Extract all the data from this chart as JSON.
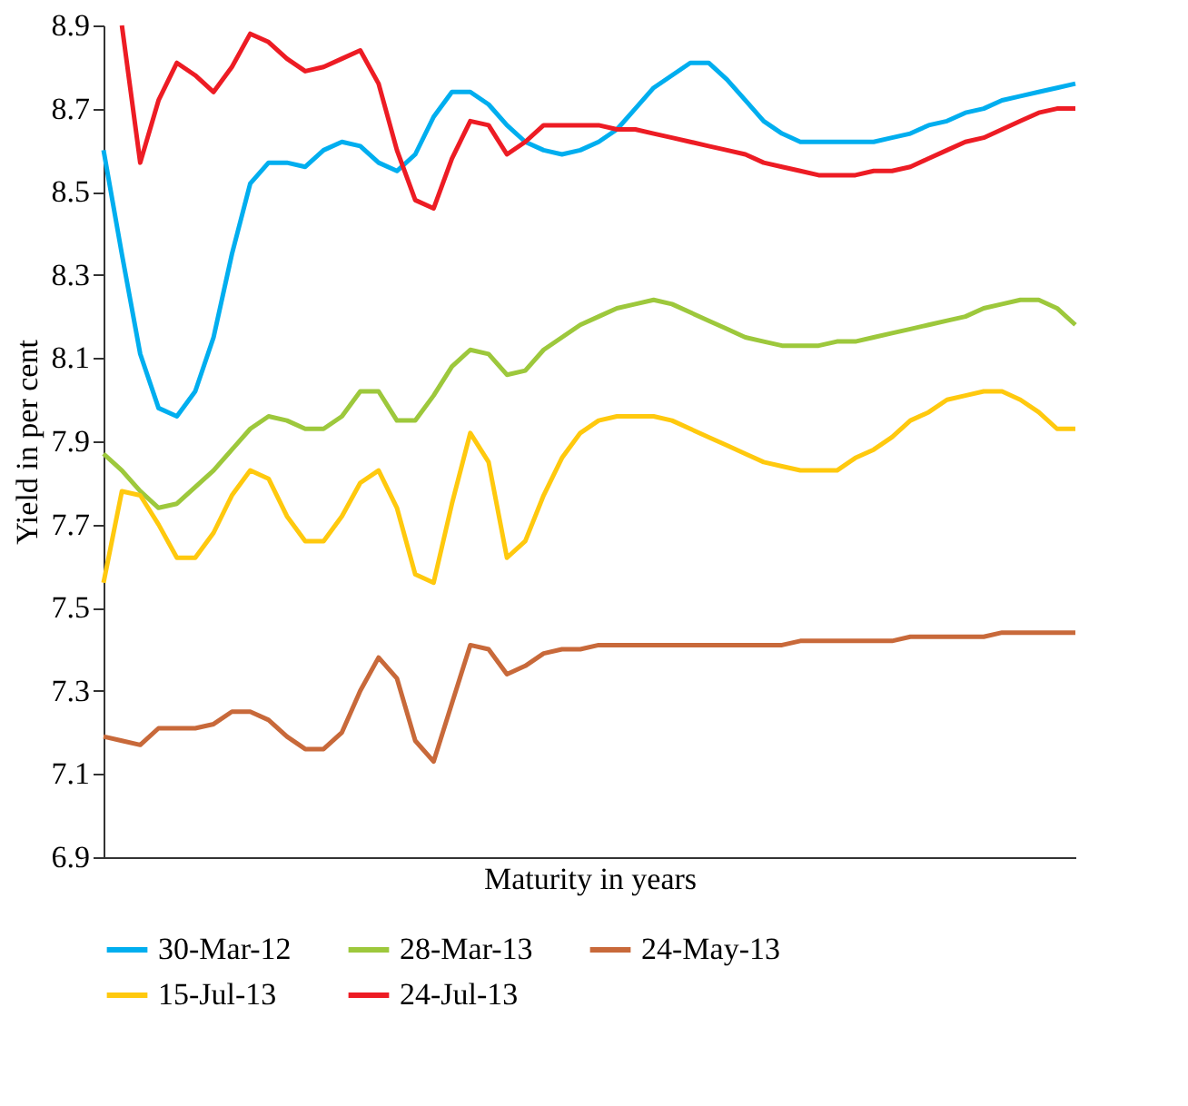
{
  "chart_data": {
    "type": "line",
    "xlabel": "Maturity in years",
    "ylabel": "Yield in per cent",
    "categories": [
      null,
      null,
      null,
      null,
      null,
      null,
      null,
      null,
      null,
      null,
      null,
      null,
      null,
      null,
      null,
      null,
      null,
      null,
      null,
      null,
      null,
      null,
      null,
      null,
      null,
      null,
      null,
      null,
      null,
      null,
      null,
      null,
      null,
      null,
      null,
      null,
      null,
      null,
      null,
      null,
      null,
      null,
      null,
      null,
      null,
      null,
      null,
      null,
      null,
      null,
      null,
      null,
      null,
      null
    ],
    "ylim": [
      6.9,
      8.9
    ],
    "yticks": [
      6.9,
      7.1,
      7.3,
      7.5,
      7.7,
      7.9,
      8.1,
      8.3,
      8.5,
      8.7,
      8.9
    ],
    "grid": false,
    "legend": "bottom",
    "tick_labels": "y",
    "marker": "none",
    "line_style": "solid",
    "series": [
      {
        "name": "30-Mar-12",
        "color": "#00aeef",
        "values": [
          8.6,
          8.35,
          8.11,
          7.98,
          7.96,
          8.02,
          8.15,
          8.35,
          8.52,
          8.57,
          8.57,
          8.56,
          8.6,
          8.62,
          8.61,
          8.57,
          8.55,
          8.59,
          8.68,
          8.74,
          8.74,
          8.71,
          8.66,
          8.62,
          8.6,
          8.59,
          8.6,
          8.62,
          8.65,
          8.7,
          8.75,
          8.78,
          8.81,
          8.81,
          8.77,
          8.72,
          8.67,
          8.64,
          8.62,
          8.62,
          8.62,
          8.62,
          8.62,
          8.63,
          8.64,
          8.66,
          8.67,
          8.69,
          8.7,
          8.72,
          8.73,
          8.74,
          8.75,
          8.76
        ]
      },
      {
        "name": "28-Mar-13",
        "color": "#9dc83c",
        "values": [
          7.87,
          7.83,
          7.78,
          7.74,
          7.75,
          7.79,
          7.83,
          7.88,
          7.93,
          7.96,
          7.95,
          7.93,
          7.93,
          7.96,
          8.02,
          8.02,
          7.95,
          7.95,
          8.01,
          8.08,
          8.12,
          8.11,
          8.06,
          8.07,
          8.12,
          8.15,
          8.18,
          8.2,
          8.22,
          8.23,
          8.24,
          8.23,
          8.21,
          8.19,
          8.17,
          8.15,
          8.14,
          8.13,
          8.13,
          8.13,
          8.14,
          8.14,
          8.15,
          8.16,
          8.17,
          8.18,
          8.19,
          8.2,
          8.22,
          8.23,
          8.24,
          8.24,
          8.22,
          8.18
        ]
      },
      {
        "name": "24-May-13",
        "color": "#c8693a",
        "values": [
          7.19,
          7.18,
          7.17,
          7.21,
          7.21,
          7.21,
          7.22,
          7.25,
          7.25,
          7.23,
          7.19,
          7.16,
          7.16,
          7.2,
          7.3,
          7.38,
          7.33,
          7.18,
          7.13,
          7.27,
          7.41,
          7.4,
          7.34,
          7.36,
          7.39,
          7.4,
          7.4,
          7.41,
          7.41,
          7.41,
          7.41,
          7.41,
          7.41,
          7.41,
          7.41,
          7.41,
          7.41,
          7.41,
          7.42,
          7.42,
          7.42,
          7.42,
          7.42,
          7.42,
          7.43,
          7.43,
          7.43,
          7.43,
          7.43,
          7.44,
          7.44,
          7.44,
          7.44,
          7.44
        ]
      },
      {
        "name": "15-Jul-13",
        "color": "#ffc90e",
        "values": [
          7.56,
          7.78,
          7.77,
          7.7,
          7.62,
          7.62,
          7.68,
          7.77,
          7.83,
          7.81,
          7.72,
          7.66,
          7.66,
          7.72,
          7.8,
          7.83,
          7.74,
          7.58,
          7.56,
          7.75,
          7.92,
          7.85,
          7.62,
          7.66,
          7.77,
          7.86,
          7.92,
          7.95,
          7.96,
          7.96,
          7.96,
          7.95,
          7.93,
          7.91,
          7.89,
          7.87,
          7.85,
          7.84,
          7.83,
          7.83,
          7.83,
          7.86,
          7.88,
          7.91,
          7.95,
          7.97,
          8.0,
          8.01,
          8.02,
          8.02,
          8.0,
          7.97,
          7.93,
          7.93
        ]
      },
      {
        "name": "24-Jul-13",
        "color": "#ed1c24",
        "values": [
          null,
          8.9,
          8.57,
          8.72,
          8.81,
          8.78,
          8.74,
          8.8,
          8.88,
          8.86,
          8.82,
          8.79,
          8.8,
          8.82,
          8.84,
          8.76,
          8.6,
          8.48,
          8.46,
          8.58,
          8.67,
          8.66,
          8.59,
          8.62,
          8.66,
          8.66,
          8.66,
          8.66,
          8.65,
          8.65,
          8.64,
          8.63,
          8.62,
          8.61,
          8.6,
          8.59,
          8.57,
          8.56,
          8.55,
          8.54,
          8.54,
          8.54,
          8.55,
          8.55,
          8.56,
          8.58,
          8.6,
          8.62,
          8.63,
          8.65,
          8.67,
          8.69,
          8.7,
          8.7
        ]
      }
    ]
  }
}
